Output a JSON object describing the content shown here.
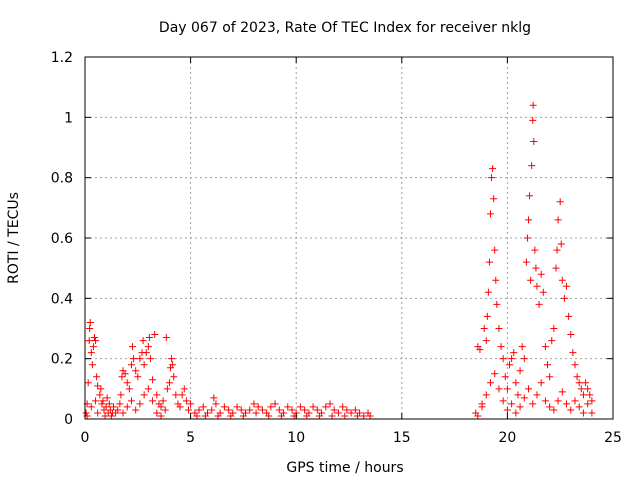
{
  "chart_data": {
    "type": "scatter",
    "title": "Day 067 of 2023, Rate Of TEC Index for receiver nklg",
    "xlabel": "GPS time / hours",
    "ylabel": "ROTI / TECUs",
    "xlim": [
      0,
      25
    ],
    "ylim": [
      0,
      1.2
    ],
    "xticks": [
      0,
      5,
      10,
      15,
      20,
      25
    ],
    "yticks": [
      0,
      0.2,
      0.4,
      0.6,
      0.8,
      1,
      1.2
    ],
    "xtick_labels": [
      "0",
      "5",
      "10",
      "15",
      "20",
      "25"
    ],
    "ytick_labels": [
      "0",
      "0.2",
      "0.4",
      "0.6",
      "0.8",
      "1",
      "1.2"
    ],
    "grid": true,
    "marker": "plus",
    "color": "#ff0000",
    "points": [
      [
        0.05,
        0.02
      ],
      [
        0.1,
        0.05
      ],
      [
        0.15,
        0.12
      ],
      [
        0.2,
        0.26
      ],
      [
        0.22,
        0.3
      ],
      [
        0.25,
        0.32
      ],
      [
        0.3,
        0.22
      ],
      [
        0.35,
        0.18
      ],
      [
        0.4,
        0.24
      ],
      [
        0.45,
        0.27
      ],
      [
        0.5,
        0.26
      ],
      [
        0.55,
        0.14
      ],
      [
        0.6,
        0.11
      ],
      [
        0.7,
        0.08
      ],
      [
        0.8,
        0.05
      ],
      [
        0.9,
        0.03
      ],
      [
        1.0,
        0.04
      ],
      [
        1.1,
        0.02
      ],
      [
        1.2,
        0.03
      ],
      [
        1.3,
        0.02
      ],
      [
        0.1,
        0.01
      ],
      [
        0.3,
        0.04
      ],
      [
        0.5,
        0.06
      ],
      [
        0.6,
        0.02
      ],
      [
        0.75,
        0.1
      ],
      [
        0.85,
        0.06
      ],
      [
        0.95,
        0.01
      ],
      [
        1.05,
        0.07
      ],
      [
        1.15,
        0.05
      ],
      [
        1.25,
        0.01
      ],
      [
        1.35,
        0.04
      ],
      [
        1.45,
        0.02
      ],
      [
        1.55,
        0.03
      ],
      [
        1.65,
        0.05
      ],
      [
        1.7,
        0.08
      ],
      [
        1.75,
        0.14
      ],
      [
        1.8,
        0.16
      ],
      [
        1.9,
        0.15
      ],
      [
        2.0,
        0.12
      ],
      [
        2.1,
        0.1
      ],
      [
        2.2,
        0.18
      ],
      [
        2.25,
        0.24
      ],
      [
        2.3,
        0.2
      ],
      [
        2.4,
        0.16
      ],
      [
        2.5,
        0.14
      ],
      [
        2.6,
        0.2
      ],
      [
        2.7,
        0.22
      ],
      [
        2.75,
        0.26
      ],
      [
        2.8,
        0.18
      ],
      [
        2.9,
        0.22
      ],
      [
        3.0,
        0.24
      ],
      [
        3.05,
        0.27
      ],
      [
        3.1,
        0.2
      ],
      [
        3.2,
        0.13
      ],
      [
        3.3,
        0.28
      ],
      [
        3.4,
        0.08
      ],
      [
        3.5,
        0.05
      ],
      [
        3.6,
        0.04
      ],
      [
        3.7,
        0.06
      ],
      [
        3.8,
        0.03
      ],
      [
        1.8,
        0.02
      ],
      [
        2.0,
        0.04
      ],
      [
        2.2,
        0.06
      ],
      [
        2.4,
        0.03
      ],
      [
        2.6,
        0.05
      ],
      [
        2.8,
        0.08
      ],
      [
        3.0,
        0.1
      ],
      [
        3.2,
        0.06
      ],
      [
        3.4,
        0.02
      ],
      [
        3.6,
        0.01
      ],
      [
        3.9,
        0.1
      ],
      [
        4.0,
        0.12
      ],
      [
        4.05,
        0.17
      ],
      [
        4.1,
        0.2
      ],
      [
        4.15,
        0.18
      ],
      [
        4.2,
        0.14
      ],
      [
        3.85,
        0.27
      ],
      [
        4.3,
        0.08
      ],
      [
        4.4,
        0.05
      ],
      [
        4.5,
        0.04
      ],
      [
        4.6,
        0.08
      ],
      [
        4.7,
        0.1
      ],
      [
        4.8,
        0.06
      ],
      [
        4.9,
        0.03
      ],
      [
        5.0,
        0.05
      ],
      [
        5.2,
        0.02
      ],
      [
        5.4,
        0.03
      ],
      [
        5.6,
        0.04
      ],
      [
        5.8,
        0.02
      ],
      [
        6.0,
        0.03
      ],
      [
        6.1,
        0.07
      ],
      [
        6.2,
        0.05
      ],
      [
        6.4,
        0.02
      ],
      [
        6.6,
        0.04
      ],
      [
        6.8,
        0.03
      ],
      [
        7.0,
        0.02
      ],
      [
        7.2,
        0.04
      ],
      [
        7.4,
        0.03
      ],
      [
        7.6,
        0.02
      ],
      [
        7.8,
        0.03
      ],
      [
        8.0,
        0.05
      ],
      [
        8.2,
        0.04
      ],
      [
        8.4,
        0.03
      ],
      [
        8.6,
        0.02
      ],
      [
        8.8,
        0.04
      ],
      [
        9.0,
        0.05
      ],
      [
        9.2,
        0.03
      ],
      [
        9.4,
        0.02
      ],
      [
        9.6,
        0.04
      ],
      [
        9.8,
        0.03
      ],
      [
        10.0,
        0.02
      ],
      [
        10.2,
        0.04
      ],
      [
        10.4,
        0.03
      ],
      [
        10.6,
        0.02
      ],
      [
        10.8,
        0.04
      ],
      [
        11.0,
        0.03
      ],
      [
        11.2,
        0.02
      ],
      [
        11.4,
        0.04
      ],
      [
        11.6,
        0.05
      ],
      [
        11.8,
        0.03
      ],
      [
        12.0,
        0.02
      ],
      [
        12.2,
        0.04
      ],
      [
        12.4,
        0.03
      ],
      [
        12.6,
        0.02
      ],
      [
        12.8,
        0.03
      ],
      [
        13.0,
        0.02
      ],
      [
        13.2,
        0.01
      ],
      [
        13.4,
        0.02
      ],
      [
        13.5,
        0.01
      ],
      [
        5.3,
        0.01
      ],
      [
        5.7,
        0.01
      ],
      [
        6.3,
        0.01
      ],
      [
        6.9,
        0.01
      ],
      [
        7.5,
        0.01
      ],
      [
        8.1,
        0.02
      ],
      [
        8.7,
        0.01
      ],
      [
        9.3,
        0.01
      ],
      [
        9.9,
        0.01
      ],
      [
        10.5,
        0.01
      ],
      [
        11.1,
        0.01
      ],
      [
        11.7,
        0.01
      ],
      [
        12.3,
        0.01
      ],
      [
        12.9,
        0.01
      ],
      [
        18.5,
        0.02
      ],
      [
        18.6,
        0.24
      ],
      [
        18.7,
        0.23
      ],
      [
        18.8,
        0.04
      ],
      [
        18.9,
        0.3
      ],
      [
        19.0,
        0.26
      ],
      [
        19.05,
        0.34
      ],
      [
        19.1,
        0.42
      ],
      [
        19.15,
        0.52
      ],
      [
        19.2,
        0.68
      ],
      [
        19.25,
        0.8
      ],
      [
        19.3,
        0.83
      ],
      [
        19.35,
        0.73
      ],
      [
        19.4,
        0.56
      ],
      [
        19.45,
        0.46
      ],
      [
        19.5,
        0.38
      ],
      [
        19.6,
        0.3
      ],
      [
        19.7,
        0.24
      ],
      [
        19.8,
        0.2
      ],
      [
        19.9,
        0.14
      ],
      [
        18.6,
        0.01
      ],
      [
        18.8,
        0.05
      ],
      [
        19.0,
        0.08
      ],
      [
        19.2,
        0.12
      ],
      [
        19.4,
        0.15
      ],
      [
        19.6,
        0.1
      ],
      [
        19.8,
        0.06
      ],
      [
        20.0,
        0.1
      ],
      [
        20.1,
        0.18
      ],
      [
        20.2,
        0.2
      ],
      [
        20.3,
        0.22
      ],
      [
        20.4,
        0.12
      ],
      [
        20.5,
        0.08
      ],
      [
        20.6,
        0.16
      ],
      [
        20.7,
        0.24
      ],
      [
        20.8,
        0.2
      ],
      [
        20.9,
        0.52
      ],
      [
        20.95,
        0.6
      ],
      [
        21.0,
        0.66
      ],
      [
        21.05,
        0.74
      ],
      [
        21.1,
        0.46
      ],
      [
        21.15,
        0.84
      ],
      [
        21.2,
        0.99
      ],
      [
        21.22,
        1.04
      ],
      [
        21.25,
        0.92
      ],
      [
        21.3,
        0.56
      ],
      [
        21.35,
        0.5
      ],
      [
        21.4,
        0.44
      ],
      [
        21.5,
        0.38
      ],
      [
        21.6,
        0.48
      ],
      [
        21.7,
        0.42
      ],
      [
        21.8,
        0.24
      ],
      [
        21.9,
        0.18
      ],
      [
        22.0,
        0.14
      ],
      [
        20.0,
        0.03
      ],
      [
        20.2,
        0.05
      ],
      [
        20.4,
        0.02
      ],
      [
        20.6,
        0.04
      ],
      [
        20.8,
        0.07
      ],
      [
        21.0,
        0.1
      ],
      [
        21.2,
        0.05
      ],
      [
        21.4,
        0.08
      ],
      [
        21.6,
        0.12
      ],
      [
        21.8,
        0.06
      ],
      [
        22.0,
        0.04
      ],
      [
        22.1,
        0.26
      ],
      [
        22.2,
        0.3
      ],
      [
        22.3,
        0.5
      ],
      [
        22.35,
        0.56
      ],
      [
        22.4,
        0.66
      ],
      [
        22.5,
        0.72
      ],
      [
        22.55,
        0.58
      ],
      [
        22.6,
        0.46
      ],
      [
        22.7,
        0.4
      ],
      [
        22.8,
        0.44
      ],
      [
        22.9,
        0.34
      ],
      [
        23.0,
        0.28
      ],
      [
        23.1,
        0.22
      ],
      [
        23.2,
        0.18
      ],
      [
        23.3,
        0.14
      ],
      [
        23.4,
        0.12
      ],
      [
        23.5,
        0.1
      ],
      [
        23.6,
        0.08
      ],
      [
        23.7,
        0.12
      ],
      [
        23.8,
        0.1
      ],
      [
        23.9,
        0.08
      ],
      [
        24.0,
        0.06
      ],
      [
        22.2,
        0.03
      ],
      [
        22.4,
        0.06
      ],
      [
        22.6,
        0.09
      ],
      [
        22.8,
        0.05
      ],
      [
        23.0,
        0.03
      ],
      [
        23.2,
        0.06
      ],
      [
        23.4,
        0.04
      ],
      [
        23.6,
        0.02
      ],
      [
        23.8,
        0.05
      ],
      [
        24.0,
        0.02
      ]
    ]
  }
}
